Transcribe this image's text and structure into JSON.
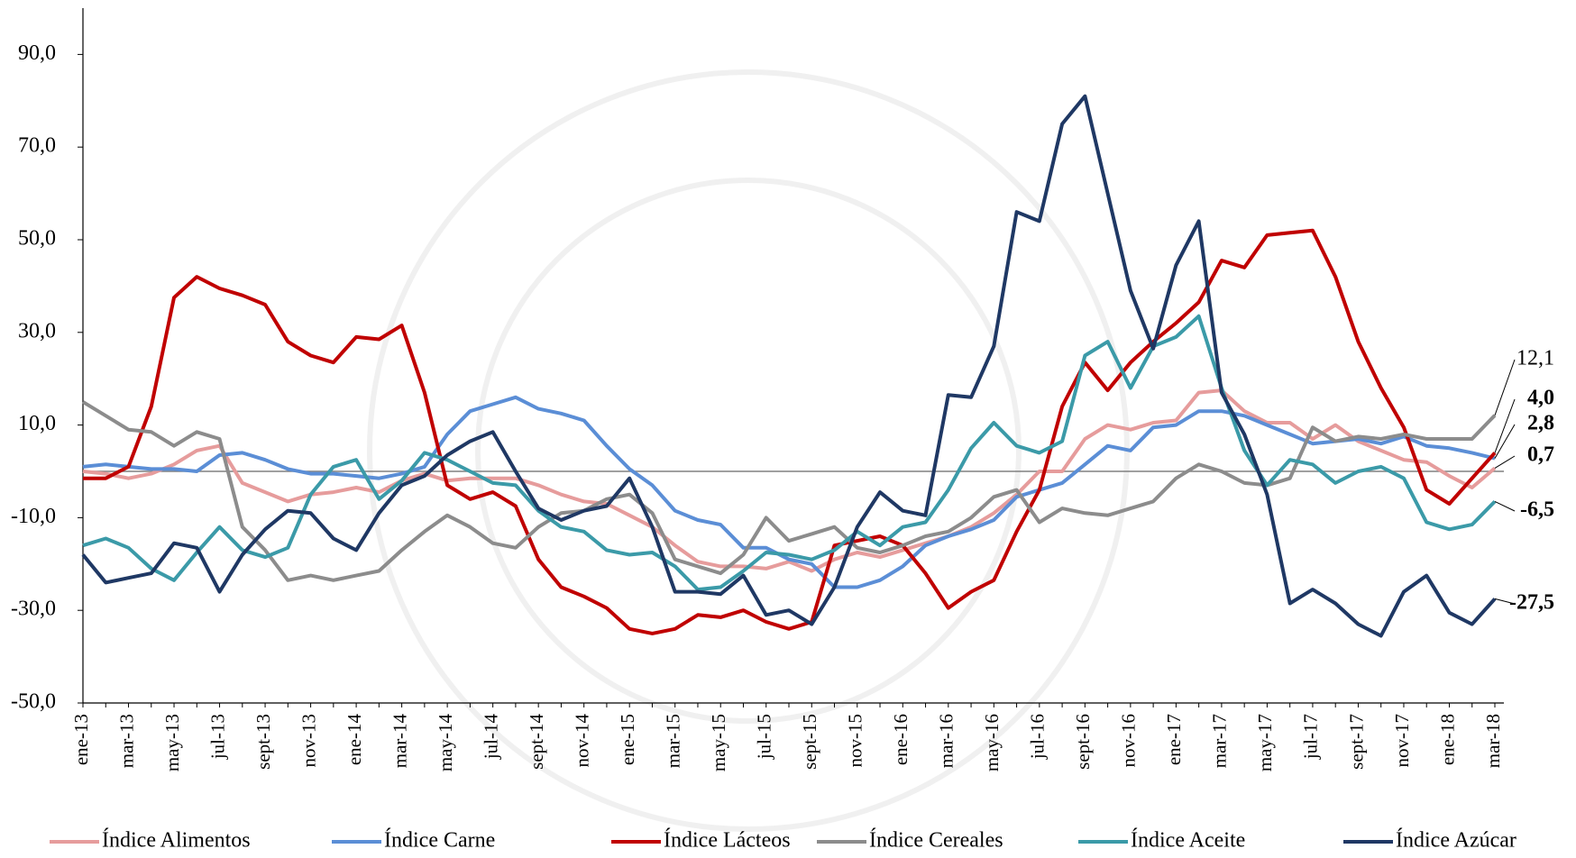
{
  "chart_data": {
    "type": "line",
    "categories": [
      "ene-13",
      null,
      "mar-13",
      null,
      "may-13",
      null,
      "jul-13",
      null,
      "sept-13",
      null,
      "nov-13",
      null,
      "ene-14",
      null,
      "mar-14",
      null,
      "may-14",
      null,
      "jul-14",
      null,
      "sept-14",
      null,
      "nov-14",
      null,
      "ene-15",
      null,
      "mar-15",
      null,
      "may-15",
      null,
      "jul-15",
      null,
      "sept-15",
      null,
      "nov-15",
      null,
      "ene-16",
      null,
      "mar-16",
      null,
      "may-16",
      null,
      "jul-16",
      null,
      "sept-16",
      null,
      "nov-16",
      null,
      "ene-17",
      null,
      "mar-17",
      null,
      "may-17",
      null,
      "jul-17",
      null,
      "sept-17",
      null,
      "nov-17",
      null,
      "ene-18",
      null,
      "mar-18"
    ],
    "ylim": [
      -50,
      100
    ],
    "yticks": [
      {
        "value": -50,
        "label": "-50,0"
      },
      {
        "value": -30,
        "label": "-30,0"
      },
      {
        "value": -10,
        "label": "-10,0"
      },
      {
        "value": 10,
        "label": "10,0"
      },
      {
        "value": 30,
        "label": "30,0"
      },
      {
        "value": 50,
        "label": "50,0"
      },
      {
        "value": 70,
        "label": "70,0"
      },
      {
        "value": 90,
        "label": "90,0"
      }
    ],
    "zero_line": 0,
    "series": [
      {
        "name": "Índice Alimentos",
        "color": "#e69c9c",
        "end_label": "0,7",
        "values": [
          0,
          -0.5,
          -1.5,
          -0.5,
          1.5,
          4.5,
          5.5,
          -2.5,
          -4.5,
          -6.5,
          -5,
          -4.5,
          -3.5,
          -4.5,
          -2,
          -0.5,
          -2,
          -1.5,
          -1.5,
          -1.5,
          -3,
          -5,
          -6.5,
          -7,
          -9.5,
          -12,
          -16,
          -19.5,
          -20.5,
          -20.5,
          -21,
          -19.5,
          -21.5,
          -19,
          -17.5,
          -18.5,
          -17,
          -15.5,
          -14,
          -12,
          -9,
          -5,
          0,
          0,
          7,
          10,
          9,
          10.5,
          11,
          17,
          17.5,
          13,
          10.5,
          10.5,
          7,
          10,
          6.5,
          4.5,
          2.5,
          2,
          -1,
          -3.5,
          0.7
        ]
      },
      {
        "name": "Índice Carne",
        "color": "#5b8ed6",
        "end_label": "2,8",
        "values": [
          1,
          1.5,
          1,
          0.5,
          0.5,
          0,
          3.5,
          4,
          2.5,
          0.5,
          -0.5,
          -0.5,
          -1,
          -1.5,
          -0.5,
          1,
          8,
          13,
          14.5,
          16,
          13.5,
          12.5,
          11,
          5.5,
          0.5,
          -3,
          -8.5,
          -10.5,
          -11.5,
          -16.5,
          -16.5,
          -19,
          -20,
          -25,
          -25,
          -23.5,
          -20.5,
          -16,
          -14,
          -12.5,
          -10.5,
          -5.5,
          -4,
          -2.5,
          1.5,
          5.5,
          4.5,
          9.5,
          10,
          13,
          13,
          12,
          10,
          8,
          6,
          6.5,
          7,
          6,
          7.5,
          5.5,
          5,
          4,
          2.8
        ]
      },
      {
        "name": "Índice Lácteos",
        "color": "#c00000",
        "end_label": "4,0",
        "values": [
          -1.5,
          -1.5,
          1,
          14,
          37.5,
          42,
          39.5,
          38,
          36,
          28,
          25,
          23.5,
          29,
          28.5,
          31.5,
          17,
          -3,
          -6,
          -4.5,
          -7.5,
          -19,
          -25,
          -27,
          -29.5,
          -34,
          -35,
          -34,
          -31,
          -31.5,
          -30,
          -32.5,
          -34,
          -32.5,
          -16,
          -15,
          -14,
          -16,
          -22,
          -29.5,
          -26,
          -23.5,
          -13,
          -4,
          14,
          23.5,
          17.5,
          23.5,
          28,
          32,
          36.5,
          45.5,
          44,
          51,
          51.5,
          52,
          42,
          28,
          18,
          9.5,
          -4,
          -7,
          -1.5,
          4.0
        ]
      },
      {
        "name": "Índice Cereales",
        "color": "#8c8c8c",
        "end_label": "12,1",
        "values": [
          15,
          12,
          9,
          8.5,
          5.5,
          8.5,
          7,
          -12,
          -17,
          -23.5,
          -22.5,
          -23.5,
          -22.5,
          -21.5,
          -17,
          -13,
          -9.5,
          -12,
          -15.5,
          -16.5,
          -12,
          -9,
          -8.5,
          -6,
          -5,
          -9,
          -19,
          -20.5,
          -22,
          -18,
          -10,
          -15,
          -13.5,
          -12,
          -16.5,
          -17.5,
          -16,
          -14,
          -13,
          -10,
          -5.5,
          -4,
          -11,
          -8,
          -9,
          -9.5,
          -8,
          -6.5,
          -1.5,
          1.5,
          0,
          -2.5,
          -3,
          -1.5,
          9.5,
          6.5,
          7.5,
          7,
          8,
          7,
          7,
          7,
          12.1
        ]
      },
      {
        "name": "Índice Aceite",
        "color": "#3b9aa8",
        "end_label": "-6,5",
        "values": [
          -16,
          -14.5,
          -16.5,
          -21,
          -23.5,
          -17.5,
          -12,
          -17,
          -18.5,
          -16.5,
          -5,
          1,
          2.5,
          -6,
          -2,
          4,
          2.5,
          0,
          -2.5,
          -3,
          -8.5,
          -12,
          -13,
          -17,
          -18,
          -17.5,
          -20.5,
          -25.5,
          -25,
          -21.5,
          -17.5,
          -18,
          -19,
          -17,
          -13,
          -16,
          -12,
          -11,
          -4,
          5,
          10.5,
          5.5,
          4,
          6.5,
          25,
          28,
          18,
          27,
          29,
          33.5,
          18,
          4.5,
          -3,
          2.5,
          1.5,
          -2.5,
          0,
          1,
          -1.5,
          -11,
          -12.5,
          -11.5,
          -6.5
        ]
      },
      {
        "name": "Índice Azúcar",
        "color": "#1f3864",
        "end_label": "-27,5",
        "values": [
          -18,
          -24,
          -23,
          -22,
          -15.5,
          -16.5,
          -26,
          -18,
          -12.5,
          -8.5,
          -9,
          -14.5,
          -17,
          -9,
          -3,
          -1,
          3.5,
          6.5,
          8.5,
          0,
          -8,
          -10.5,
          -8.5,
          -7.5,
          -1.5,
          -12,
          -26,
          -26,
          -26.5,
          -22.5,
          -31,
          -30,
          -33,
          -25,
          -12,
          -4.5,
          -8.5,
          -9.5,
          16.5,
          16,
          27,
          56,
          54,
          75,
          81,
          60,
          39,
          26.5,
          44.5,
          54,
          17,
          8,
          -5,
          -28.5,
          -25.5,
          -28.5,
          -33,
          -35.5,
          -26,
          -22.5,
          -30.5,
          -33,
          -27.5
        ]
      }
    ]
  }
}
